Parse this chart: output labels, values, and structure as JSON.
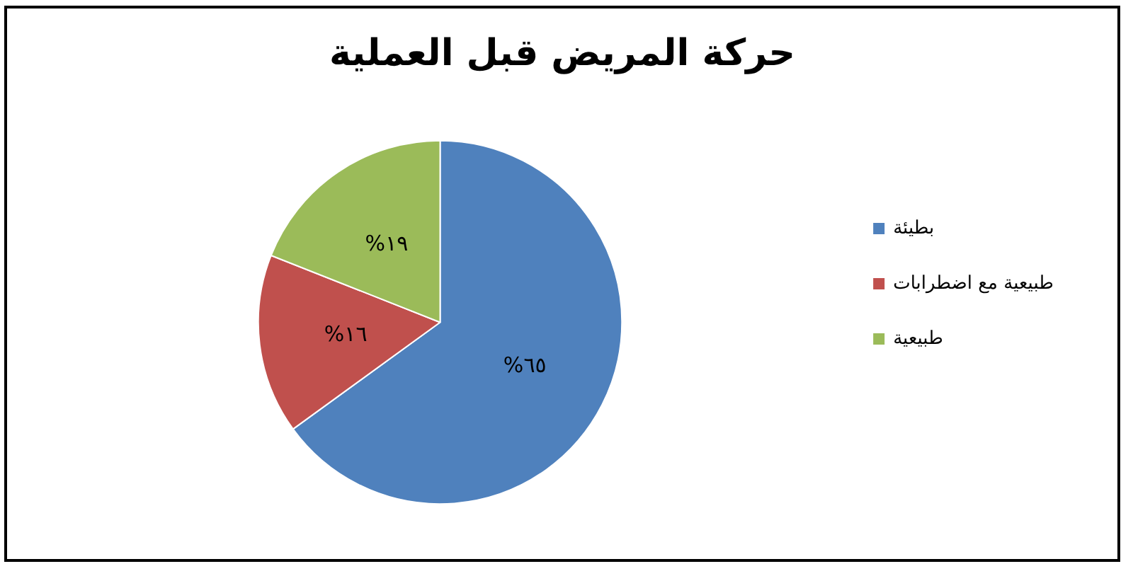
{
  "chart_data": {
    "type": "pie",
    "title": "حركة المريض قبل العملية",
    "categories": [
      "بطيئة",
      "طبيعية مع اضطرابات",
      "طبيعية"
    ],
    "values": [
      65,
      16,
      19
    ],
    "colors": [
      "#4f81bd",
      "#c0504d",
      "#9bbb59"
    ],
    "value_labels": [
      "%٦٥",
      "%١٦",
      "%١٩"
    ],
    "legend": "right"
  }
}
